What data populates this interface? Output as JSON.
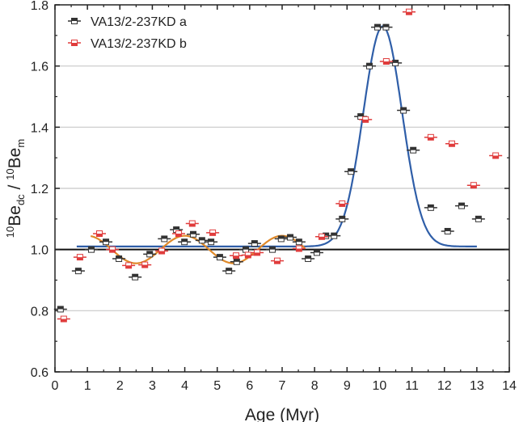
{
  "chart_data": {
    "type": "scatter",
    "xlabel": "Age (Myr)",
    "ylabel": {
      "sup1": "10",
      "base1": "Be",
      "sub1": "dc",
      "sep": " / ",
      "sup2": "10",
      "base2": "Be",
      "sub2": "m"
    },
    "xlim": [
      0,
      14
    ],
    "ylim": [
      0.6,
      1.8
    ],
    "xticks": [
      0,
      1,
      2,
      3,
      4,
      5,
      6,
      7,
      8,
      9,
      10,
      11,
      12,
      13,
      14
    ],
    "yticks": [
      0.6,
      0.8,
      1.0,
      1.2,
      1.4,
      1.6,
      1.8
    ],
    "ytick_labels": [
      "0.6",
      "0.8",
      "1.0",
      "1.2",
      "1.4",
      "1.6",
      "1.8"
    ],
    "grid": "horizontal",
    "reference_line_y": 1.0,
    "legend_position": "top-left",
    "series": [
      {
        "name": "VA13/2-237KD a",
        "color": "#333333",
        "xerr": 0.2,
        "points": [
          [
            0.17,
            0.805
          ],
          [
            0.72,
            0.93
          ],
          [
            1.12,
            1.0
          ],
          [
            1.57,
            1.025
          ],
          [
            1.97,
            0.97
          ],
          [
            2.47,
            0.91
          ],
          [
            2.92,
            0.985
          ],
          [
            3.37,
            1.035
          ],
          [
            3.74,
            1.065
          ],
          [
            3.99,
            1.025
          ],
          [
            4.26,
            1.05
          ],
          [
            4.53,
            1.03
          ],
          [
            4.81,
            1.025
          ],
          [
            5.08,
            0.975
          ],
          [
            5.36,
            0.93
          ],
          [
            5.6,
            0.96
          ],
          [
            5.88,
            1.0
          ],
          [
            6.15,
            1.02
          ],
          [
            6.7,
            1.0
          ],
          [
            6.97,
            1.035
          ],
          [
            7.25,
            1.04
          ],
          [
            7.52,
            1.025
          ],
          [
            7.8,
            0.97
          ],
          [
            8.07,
            0.99
          ],
          [
            8.35,
            1.045
          ],
          [
            8.6,
            1.045
          ],
          [
            8.85,
            1.1
          ],
          [
            9.12,
            1.255
          ],
          [
            9.42,
            1.435
          ],
          [
            9.69,
            1.6
          ],
          [
            9.94,
            1.727
          ],
          [
            10.2,
            1.727
          ],
          [
            10.49,
            1.61
          ],
          [
            10.74,
            1.455
          ],
          [
            11.04,
            1.325
          ],
          [
            11.58,
            1.137
          ],
          [
            12.1,
            1.06
          ],
          [
            12.53,
            1.143
          ],
          [
            13.05,
            1.1
          ]
        ]
      },
      {
        "name": "VA13/2-237KD b",
        "color": "#e03c3c",
        "xerr": 0.2,
        "points": [
          [
            0.27,
            0.773
          ],
          [
            0.77,
            0.975
          ],
          [
            1.37,
            1.052
          ],
          [
            1.77,
            1.0
          ],
          [
            2.27,
            0.948
          ],
          [
            2.77,
            0.95
          ],
          [
            3.29,
            0.995
          ],
          [
            3.81,
            1.052
          ],
          [
            4.23,
            1.085
          ],
          [
            4.86,
            1.055
          ],
          [
            5.58,
            0.98
          ],
          [
            5.95,
            0.982
          ],
          [
            6.23,
            0.99
          ],
          [
            6.85,
            0.963
          ],
          [
            7.52,
            1.003
          ],
          [
            8.22,
            1.042
          ],
          [
            8.85,
            1.15
          ],
          [
            9.57,
            1.425
          ],
          [
            10.21,
            1.615
          ],
          [
            10.91,
            1.777
          ],
          [
            11.58,
            1.367
          ],
          [
            12.23,
            1.346
          ],
          [
            12.9,
            1.21
          ],
          [
            13.58,
            1.307
          ]
        ]
      }
    ],
    "fits": [
      {
        "type": "gaussian",
        "color": "#2f5ea8",
        "baseline": 1.01,
        "peak": 1.73,
        "center": 10.1,
        "sigma": 0.6,
        "x_range": [
          0.67,
          13.0
        ]
      },
      {
        "type": "sine",
        "color": "#e08a2a",
        "mean": 1.0,
        "amplitude": 0.045,
        "period": 3.0,
        "phase_x": 3.25,
        "x_range": [
          1.1,
          7.7
        ]
      }
    ]
  }
}
